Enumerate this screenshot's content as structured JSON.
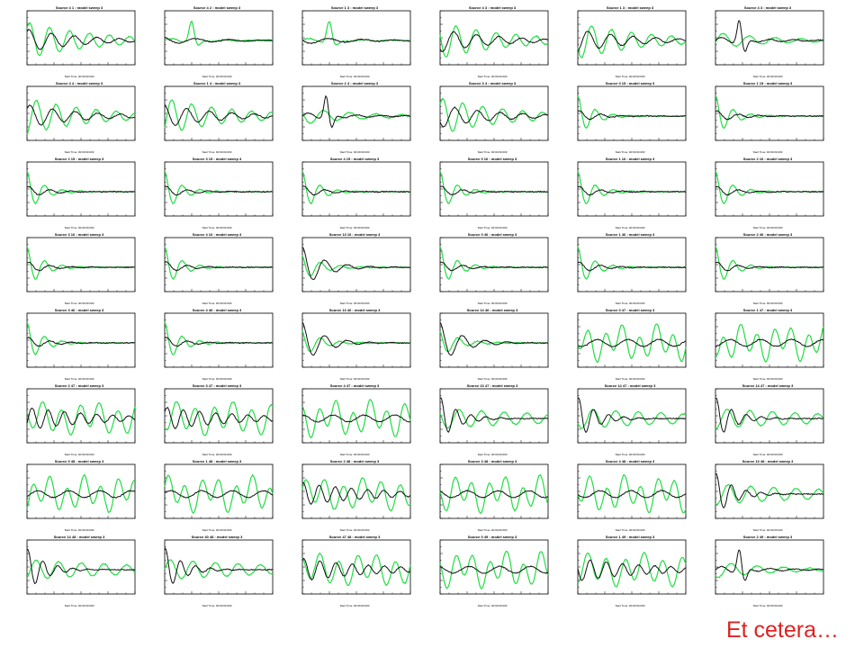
{
  "footer": {
    "text": "Et cetera…"
  },
  "colors": {
    "series_a": "#111111",
    "series_b": "#22dd44",
    "axis": "#000000"
  },
  "chart_data": {
    "type": "line",
    "note_text": "",
    "panels": [
      {
        "title": "Source 4 1 : model sweep 3",
        "x_label": "Start Time: 00:00:00.000",
        "variant": "large-osc"
      },
      {
        "title": "Source 4 2 : model sweep 3",
        "x_label": "Start Time: 00:00:00.000",
        "variant": "green-spike"
      },
      {
        "title": "Source 1 3 : model sweep 3",
        "x_label": "Start Time: 00:00:00.000",
        "variant": "green-spike"
      },
      {
        "title": "Source 4 3 : model sweep 3",
        "x_label": "Start Time: 00:00:00.000",
        "variant": "large-osc"
      },
      {
        "title": "Source 1 3 : model sweep 3",
        "x_label": "Start Time: 00:00:00.000",
        "variant": "large-osc"
      },
      {
        "title": "Source 4 3 : model sweep 3",
        "x_label": "Start Time: 00:00:00.000",
        "variant": "black-spike"
      },
      {
        "title": "Source 4 4 : model sweep 3",
        "x_label": "Start Time: 00:00:00.000",
        "variant": "large-osc"
      },
      {
        "title": "Source 1 4 : model sweep 3",
        "x_label": "Start Time: 00:00:00.000",
        "variant": "large-osc"
      },
      {
        "title": "Source 2 4 : model sweep 3",
        "x_label": "Start Time: 00:00:00.000",
        "variant": "black-spike"
      },
      {
        "title": "Source 3 4 : model sweep 3",
        "x_label": "Start Time: 00:00:00.000",
        "variant": "large-osc"
      },
      {
        "title": "Source 0 15 : model sweep 3",
        "x_label": "Start Time: 00:00:00.000",
        "variant": "decay-flat"
      },
      {
        "title": "Source 1 15 : model sweep 3",
        "x_label": "Start Time: 00:00:00.000",
        "variant": "decay-flat"
      },
      {
        "title": "Source 2 15 : model sweep 3",
        "x_label": "Start Time: 00:00:00.000",
        "variant": "decay"
      },
      {
        "title": "Source 3 15 : model sweep 3",
        "x_label": "Start Time: 00:00:00.000",
        "variant": "decay"
      },
      {
        "title": "Source 4 15 : model sweep 3",
        "x_label": "Start Time: 00:00:00.000",
        "variant": "decay"
      },
      {
        "title": "Source 0 16 : model sweep 3",
        "x_label": "Start Time: 00:00:00.000",
        "variant": "decay"
      },
      {
        "title": "Source 1 16 : model sweep 3",
        "x_label": "Start Time: 00:00:00.000",
        "variant": "decay"
      },
      {
        "title": "Source 2 16 : model sweep 3",
        "x_label": "Start Time: 00:00:00.000",
        "variant": "decay"
      },
      {
        "title": "Source 3 16 : model sweep 3",
        "x_label": "Start Time: 00:00:00.000",
        "variant": "decay"
      },
      {
        "title": "Source 4 16 : model sweep 3",
        "x_label": "Start Time: 00:00:00.000",
        "variant": "decay"
      },
      {
        "title": "Source 13 16 : model sweep 3",
        "x_label": "Start Time: 00:00:00.000",
        "variant": "decay-black"
      },
      {
        "title": "Source 0 46 : model sweep 3",
        "x_label": "Start Time: 00:00:00.000",
        "variant": "decay-flat"
      },
      {
        "title": "Source 1 46 : model sweep 3",
        "x_label": "Start Time: 00:00:00.000",
        "variant": "decay-flat"
      },
      {
        "title": "Source 2 46 : model sweep 3",
        "x_label": "Start Time: 00:00:00.000",
        "variant": "decay-flat"
      },
      {
        "title": "Source 3 46 : model sweep 3",
        "x_label": "Start Time: 00:00:00.000",
        "variant": "decay-flat"
      },
      {
        "title": "Source 4 46 : model sweep 3",
        "x_label": "Start Time: 00:00:00.000",
        "variant": "decay-flat"
      },
      {
        "title": "Source 13 46 : model sweep 3",
        "x_label": "Start Time: 00:00:00.000",
        "variant": "decay-black"
      },
      {
        "title": "Source 14 46 : model sweep 3",
        "x_label": "Start Time: 00:00:00.000",
        "variant": "decay-black"
      },
      {
        "title": "Source 0 47 : model sweep 3",
        "x_label": "Start Time: 00:00:00.000",
        "variant": "noisy"
      },
      {
        "title": "Source 1 47 : model sweep 3",
        "x_label": "Start Time: 00:00:00.000",
        "variant": "noisy"
      },
      {
        "title": "Source 2 47 : model sweep 3",
        "x_label": "Start Time: 00:00:00.000",
        "variant": "noisy-black"
      },
      {
        "title": "Source 3 47 : model sweep 3",
        "x_label": "Start Time: 00:00:00.000",
        "variant": "noisy-black"
      },
      {
        "title": "Source 4 47 : model sweep 3",
        "x_label": "Start Time: 00:00:00.000",
        "variant": "noisy"
      },
      {
        "title": "Source 13 47 : model sweep 3",
        "x_label": "Start Time: 00:00:00.000",
        "variant": "black-early"
      },
      {
        "title": "Source 14 47 : model sweep 3",
        "x_label": "Start Time: 00:00:00.000",
        "variant": "black-early"
      },
      {
        "title": "Source 14 47 : model sweep 3",
        "x_label": "Start Time: 00:00:00.000",
        "variant": "black-early"
      },
      {
        "title": "Source 0 48 : model sweep 3",
        "x_label": "Start Time: 00:00:00.000",
        "variant": "noisy"
      },
      {
        "title": "Source 1 48 : model sweep 3",
        "x_label": "Start Time: 00:00:00.000",
        "variant": "noisy"
      },
      {
        "title": "Source 2 48 : model sweep 3",
        "x_label": "Start Time: 00:00:00.000",
        "variant": "noisy-black"
      },
      {
        "title": "Source 3 48 : model sweep 3",
        "x_label": "Start Time: 00:00:00.000",
        "variant": "noisy"
      },
      {
        "title": "Source 4 48 : model sweep 3",
        "x_label": "Start Time: 00:00:00.000",
        "variant": "noisy"
      },
      {
        "title": "Source 13 48 : model sweep 3",
        "x_label": "Start Time: 00:00:00.000",
        "variant": "black-early"
      },
      {
        "title": "Source 14 48 : model sweep 3",
        "x_label": "Start Time: 00:00:00.000",
        "variant": "black-early"
      },
      {
        "title": "Source 40 48 : model sweep 3",
        "x_label": "Start Time: 00:00:00.000",
        "variant": "black-early"
      },
      {
        "title": "Source 47 48 : model sweep 3",
        "x_label": "Start Time: 00:00:00.000",
        "variant": "noisy-black"
      },
      {
        "title": "Source 0 49 : model sweep 3",
        "x_label": "Start Time: 00:00:00.000",
        "variant": "noisy"
      },
      {
        "title": "Source 1 49 : model sweep 3",
        "x_label": "Start Time: 00:00:00.000",
        "variant": "noisy-black"
      },
      {
        "title": "Source 2 49 : model sweep 3",
        "x_label": "Start Time: 00:00:00.000",
        "variant": "black-spike"
      }
    ]
  }
}
